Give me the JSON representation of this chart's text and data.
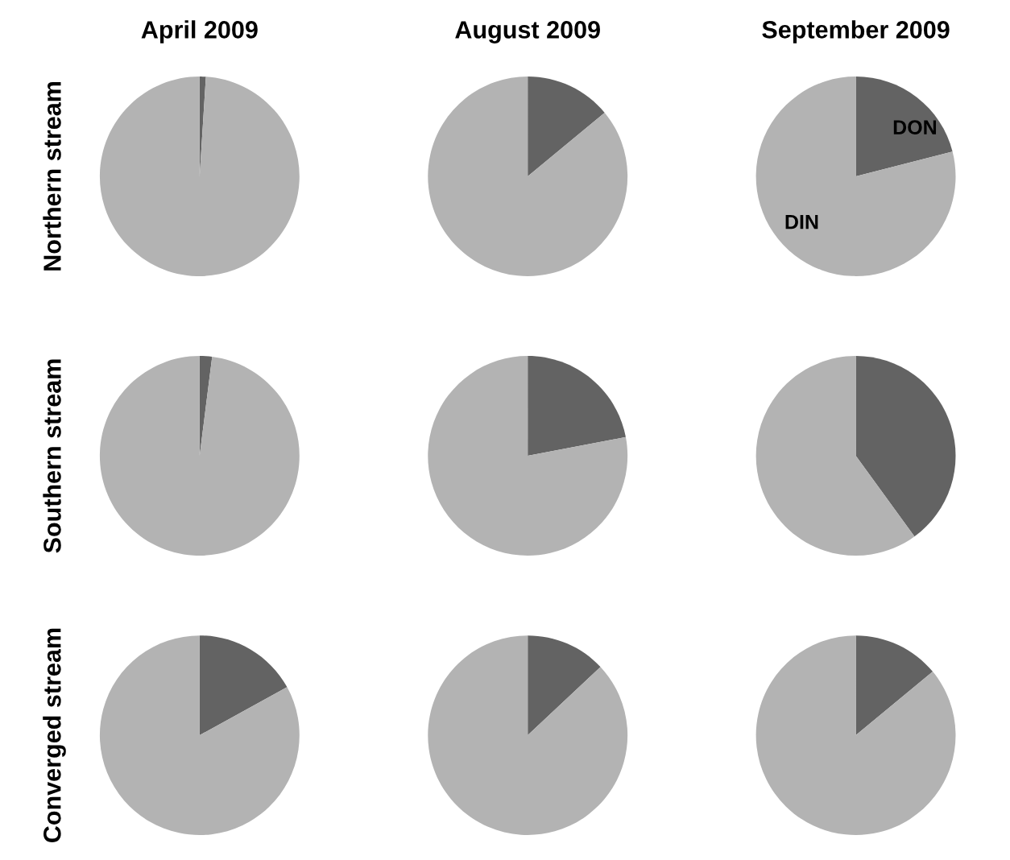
{
  "chart_data": [
    {
      "type": "pie",
      "title": "April 2009",
      "ylabel": "Northern stream",
      "categories": [
        null,
        null
      ],
      "values": [
        1,
        99
      ],
      "colors": [
        "#636363",
        "#b3b3b3"
      ]
    },
    {
      "type": "pie",
      "title": "August 2009",
      "categories": [
        null,
        null
      ],
      "values": [
        14,
        86
      ],
      "colors": [
        "#636363",
        "#b3b3b3"
      ]
    },
    {
      "type": "pie",
      "title": "September 2009",
      "categories": [
        "DON",
        "DIN"
      ],
      "values": [
        21,
        79
      ],
      "colors": [
        "#636363",
        "#b3b3b3"
      ]
    },
    {
      "type": "pie",
      "ylabel": "Southern stream",
      "categories": [
        null,
        null
      ],
      "values": [
        2,
        98
      ],
      "colors": [
        "#636363",
        "#b3b3b3"
      ]
    },
    {
      "type": "pie",
      "categories": [
        null,
        null
      ],
      "values": [
        22,
        78
      ],
      "colors": [
        "#636363",
        "#b3b3b3"
      ]
    },
    {
      "type": "pie",
      "categories": [
        null,
        null
      ],
      "values": [
        40,
        60
      ],
      "colors": [
        "#636363",
        "#b3b3b3"
      ]
    },
    {
      "type": "pie",
      "ylabel": "Converged stream",
      "categories": [
        null,
        null
      ],
      "values": [
        17,
        83
      ],
      "colors": [
        "#636363",
        "#b3b3b3"
      ]
    },
    {
      "type": "pie",
      "categories": [
        null,
        null
      ],
      "values": [
        13,
        87
      ],
      "colors": [
        "#636363",
        "#b3b3b3"
      ]
    },
    {
      "type": "pie",
      "categories": [
        null,
        null
      ],
      "values": [
        14,
        86
      ],
      "colors": [
        "#636363",
        "#b3b3b3"
      ]
    }
  ]
}
